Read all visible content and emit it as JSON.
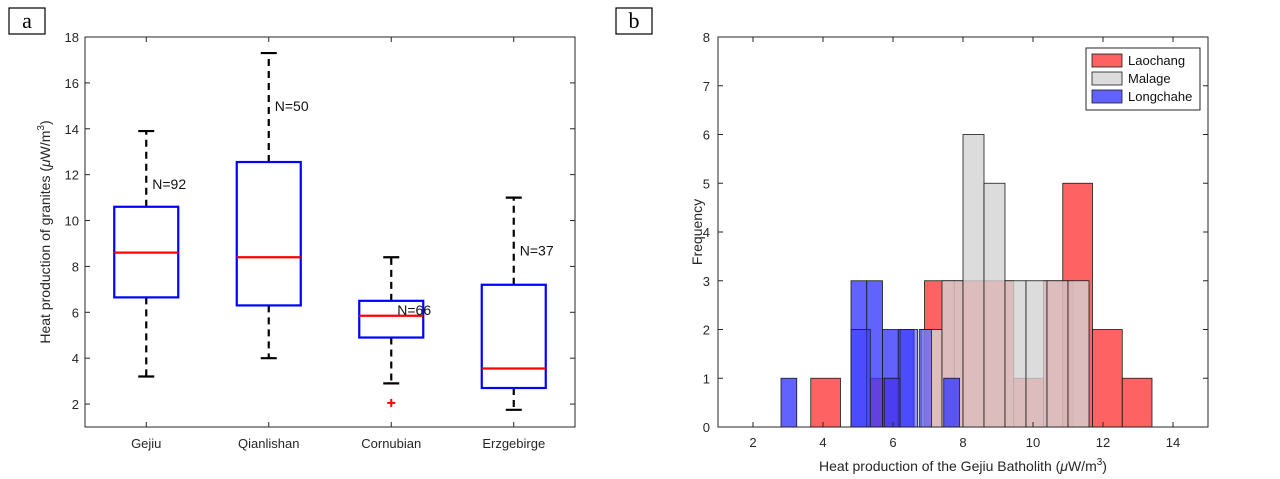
{
  "chart_data": [
    {
      "type": "box",
      "panel_label": "a",
      "ylabel": "Heat production of granites (μW/m³)",
      "ylabel_parts": {
        "prefix": "Heat production of granites (",
        "mu": "μ",
        "unit": "W/m",
        "exp": "3",
        "suffix": ")"
      },
      "ylim": [
        1,
        18
      ],
      "yticks": [
        2,
        4,
        6,
        8,
        10,
        12,
        14,
        16,
        18
      ],
      "categories": [
        "Gejiu",
        "Qianlishan",
        "Cornubian",
        "Erzgebirge"
      ],
      "boxes": [
        {
          "name": "Gejiu",
          "whisker_low": 3.2,
          "q1": 6.65,
          "median": 8.6,
          "q3": 10.6,
          "whisker_high": 13.9,
          "n_label": "N=92",
          "outliers": []
        },
        {
          "name": "Qianlishan",
          "whisker_low": 4.0,
          "q1": 6.3,
          "median": 8.4,
          "q3": 12.55,
          "whisker_high": 17.3,
          "n_label": "N=50",
          "outliers": []
        },
        {
          "name": "Cornubian",
          "whisker_low": 2.9,
          "q1": 4.9,
          "median": 5.85,
          "q3": 6.5,
          "whisker_high": 8.4,
          "n_label": "N=66",
          "outliers": [
            2.05
          ]
        },
        {
          "name": "Erzgebirge",
          "whisker_low": 1.75,
          "q1": 2.7,
          "median": 3.55,
          "q3": 7.2,
          "whisker_high": 11.0,
          "n_label": "N=37",
          "outliers": []
        }
      ],
      "colors": {
        "box": "#0000ff",
        "median": "#ff0000",
        "whisker": "#000000",
        "outlier": "#ff0000"
      }
    },
    {
      "type": "histogram",
      "panel_label": "b",
      "xlabel": "Heat production of the Gejiu Batholith (μW/m³)",
      "xlabel_parts": {
        "prefix": "Heat production of the Gejiu Batholith (",
        "mu": "μ",
        "unit": "W/m",
        "exp": "3",
        "suffix": ")"
      },
      "ylabel": "Frequency",
      "xlim": [
        1,
        15
      ],
      "ylim": [
        0,
        8
      ],
      "xticks": [
        2,
        4,
        6,
        8,
        10,
        12,
        14
      ],
      "yticks": [
        0,
        1,
        2,
        3,
        4,
        5,
        6,
        7,
        8
      ],
      "legend_position": "top-right",
      "series": [
        {
          "name": "Laochang",
          "color": "#ff3b3b",
          "opacity": 0.8,
          "bins": [
            [
              3.65,
              4.5,
              1
            ],
            [
              4.5,
              5.35,
              0
            ],
            [
              5.35,
              6.2,
              1
            ],
            [
              6.2,
              7.05,
              0
            ],
            [
              6.9,
              7.75,
              3
            ],
            [
              7.75,
              8.6,
              3
            ],
            [
              8.6,
              9.45,
              3
            ],
            [
              9.45,
              10.3,
              1
            ],
            [
              10.3,
              11.15,
              3
            ],
            [
              10.85,
              11.7,
              5
            ],
            [
              11.7,
              12.55,
              2
            ],
            [
              12.55,
              13.4,
              1
            ]
          ]
        },
        {
          "name": "Malage",
          "color": "#d3d3d3",
          "opacity": 0.8,
          "bins": [
            [
              6.8,
              7.4,
              2
            ],
            [
              7.4,
              8.0,
              3
            ],
            [
              8.0,
              8.6,
              6
            ],
            [
              8.6,
              9.2,
              5
            ],
            [
              9.2,
              9.8,
              3
            ],
            [
              9.8,
              10.4,
              3
            ],
            [
              10.4,
              11.0,
              3
            ],
            [
              11.0,
              11.6,
              3
            ]
          ]
        },
        {
          "name": "Longchahe",
          "color": "#3b3bff",
          "opacity": 0.8,
          "bins": [
            [
              2.8,
              3.25,
              1
            ],
            [
              4.8,
              5.25,
              3
            ],
            [
              5.25,
              5.7,
              3
            ],
            [
              5.7,
              6.15,
              2
            ],
            [
              6.15,
              6.6,
              2
            ],
            [
              7.45,
              7.9,
              1
            ]
          ]
        }
      ],
      "overlay_bins": [
        {
          "series": "Longchahe",
          "bins": [
            [
              4.8,
              5.35,
              2
            ],
            [
              6.2,
              6.7,
              2
            ],
            [
              5.75,
              6.2,
              1
            ],
            [
              6.75,
              7.1,
              2
            ]
          ]
        }
      ]
    }
  ]
}
